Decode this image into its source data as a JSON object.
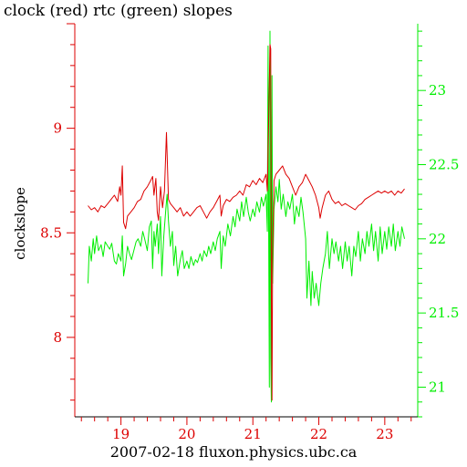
{
  "title": "clock (red) rtc (green) slopes",
  "footer": "2007-02-18 fluxon.physics.ubc.ca",
  "chart_data": {
    "type": "line",
    "title": "clock (red) rtc (green) slopes",
    "xlabel": "2007-02-18 fluxon.physics.ubc.ca",
    "ylabel": "clockslope",
    "y2label": "",
    "xlim": [
      18.3,
      23.5
    ],
    "ylim": [
      7.62,
      9.5
    ],
    "y2lim": [
      20.8,
      23.45
    ],
    "grid": false,
    "x_ticks": [
      19,
      20,
      21,
      22,
      23
    ],
    "x_tick_labels": [
      "19",
      "20",
      "21",
      "22",
      "23"
    ],
    "y_ticks": [
      8,
      8.5,
      9
    ],
    "y_tick_labels": [
      "8",
      "8.5",
      "9"
    ],
    "y2_ticks": [
      21,
      21.5,
      22,
      22.5,
      23
    ],
    "y2_tick_labels": [
      "21",
      "21.5",
      "22",
      "22.5",
      "23"
    ],
    "colors": {
      "clock": "#dd0000",
      "rtc": "#00ee00",
      "axis": "#000000"
    },
    "series": [
      {
        "axis": "left",
        "color": "#dd0000",
        "points": [
          [
            18.5,
            8.63
          ],
          [
            18.55,
            8.61
          ],
          [
            18.6,
            8.62
          ],
          [
            18.65,
            8.6
          ],
          [
            18.7,
            8.63
          ],
          [
            18.75,
            8.62
          ],
          [
            18.8,
            8.64
          ],
          [
            18.85,
            8.66
          ],
          [
            18.9,
            8.68
          ],
          [
            18.95,
            8.65
          ],
          [
            18.98,
            8.72
          ],
          [
            19.0,
            8.68
          ],
          [
            19.02,
            8.82
          ],
          [
            19.04,
            8.55
          ],
          [
            19.07,
            8.52
          ],
          [
            19.1,
            8.58
          ],
          [
            19.15,
            8.6
          ],
          [
            19.2,
            8.62
          ],
          [
            19.25,
            8.65
          ],
          [
            19.3,
            8.66
          ],
          [
            19.35,
            8.7
          ],
          [
            19.4,
            8.72
          ],
          [
            19.45,
            8.75
          ],
          [
            19.48,
            8.77
          ],
          [
            19.5,
            8.68
          ],
          [
            19.53,
            8.76
          ],
          [
            19.55,
            8.6
          ],
          [
            19.57,
            8.56
          ],
          [
            19.6,
            8.72
          ],
          [
            19.63,
            8.62
          ],
          [
            19.66,
            8.7
          ],
          [
            19.69,
            8.98
          ],
          [
            19.72,
            8.66
          ],
          [
            19.75,
            8.64
          ],
          [
            19.8,
            8.62
          ],
          [
            19.85,
            8.6
          ],
          [
            19.9,
            8.62
          ],
          [
            19.95,
            8.58
          ],
          [
            20.0,
            8.6
          ],
          [
            20.05,
            8.58
          ],
          [
            20.1,
            8.6
          ],
          [
            20.15,
            8.62
          ],
          [
            20.2,
            8.63
          ],
          [
            20.25,
            8.6
          ],
          [
            20.3,
            8.57
          ],
          [
            20.35,
            8.6
          ],
          [
            20.4,
            8.62
          ],
          [
            20.45,
            8.65
          ],
          [
            20.5,
            8.68
          ],
          [
            20.52,
            8.58
          ],
          [
            20.55,
            8.63
          ],
          [
            20.6,
            8.66
          ],
          [
            20.65,
            8.65
          ],
          [
            20.7,
            8.67
          ],
          [
            20.75,
            8.68
          ],
          [
            20.8,
            8.7
          ],
          [
            20.85,
            8.68
          ],
          [
            20.9,
            8.73
          ],
          [
            20.95,
            8.72
          ],
          [
            21.0,
            8.75
          ],
          [
            21.05,
            8.73
          ],
          [
            21.1,
            8.76
          ],
          [
            21.15,
            8.74
          ],
          [
            21.2,
            8.78
          ],
          [
            21.22,
            8.7
          ],
          [
            21.24,
            9.05
          ],
          [
            21.26,
            9.4
          ],
          [
            21.27,
            9.38
          ],
          [
            21.28,
            8.2
          ],
          [
            21.29,
            7.7
          ],
          [
            21.3,
            8.4
          ],
          [
            21.32,
            8.75
          ],
          [
            21.35,
            8.78
          ],
          [
            21.4,
            8.8
          ],
          [
            21.45,
            8.82
          ],
          [
            21.5,
            8.78
          ],
          [
            21.55,
            8.76
          ],
          [
            21.6,
            8.72
          ],
          [
            21.65,
            8.68
          ],
          [
            21.7,
            8.72
          ],
          [
            21.75,
            8.74
          ],
          [
            21.8,
            8.78
          ],
          [
            21.85,
            8.75
          ],
          [
            21.9,
            8.72
          ],
          [
            21.95,
            8.68
          ],
          [
            22.0,
            8.62
          ],
          [
            22.02,
            8.57
          ],
          [
            22.05,
            8.62
          ],
          [
            22.1,
            8.68
          ],
          [
            22.15,
            8.7
          ],
          [
            22.2,
            8.66
          ],
          [
            22.25,
            8.64
          ],
          [
            22.3,
            8.65
          ],
          [
            22.35,
            8.63
          ],
          [
            22.4,
            8.64
          ],
          [
            22.45,
            8.63
          ],
          [
            22.5,
            8.62
          ],
          [
            22.55,
            8.61
          ],
          [
            22.6,
            8.63
          ],
          [
            22.65,
            8.64
          ],
          [
            22.7,
            8.66
          ],
          [
            22.75,
            8.67
          ],
          [
            22.8,
            8.68
          ],
          [
            22.85,
            8.69
          ],
          [
            22.9,
            8.7
          ],
          [
            22.95,
            8.69
          ],
          [
            23.0,
            8.7
          ],
          [
            23.05,
            8.69
          ],
          [
            23.1,
            8.7
          ],
          [
            23.15,
            8.68
          ],
          [
            23.2,
            8.7
          ],
          [
            23.25,
            8.69
          ],
          [
            23.3,
            8.71
          ]
        ]
      },
      {
        "axis": "right",
        "color": "#00ee00",
        "points": [
          [
            18.5,
            21.7
          ],
          [
            18.52,
            21.95
          ],
          [
            18.55,
            21.85
          ],
          [
            18.58,
            22.0
          ],
          [
            18.6,
            21.9
          ],
          [
            18.63,
            22.02
          ],
          [
            18.66,
            21.92
          ],
          [
            18.7,
            21.96
          ],
          [
            18.73,
            21.88
          ],
          [
            18.76,
            21.98
          ],
          [
            18.8,
            21.95
          ],
          [
            18.83,
            21.93
          ],
          [
            18.86,
            21.97
          ],
          [
            18.9,
            21.85
          ],
          [
            18.93,
            21.83
          ],
          [
            18.96,
            21.9
          ],
          [
            19.0,
            21.85
          ],
          [
            19.02,
            22.02
          ],
          [
            19.04,
            21.75
          ],
          [
            19.07,
            21.83
          ],
          [
            19.1,
            21.95
          ],
          [
            19.13,
            21.9
          ],
          [
            19.16,
            21.86
          ],
          [
            19.2,
            21.93
          ],
          [
            19.23,
            21.98
          ],
          [
            19.26,
            22.0
          ],
          [
            19.3,
            21.95
          ],
          [
            19.33,
            22.05
          ],
          [
            19.36,
            22.0
          ],
          [
            19.4,
            21.92
          ],
          [
            19.43,
            22.08
          ],
          [
            19.46,
            22.12
          ],
          [
            19.48,
            21.8
          ],
          [
            19.5,
            22.05
          ],
          [
            19.52,
            21.95
          ],
          [
            19.55,
            22.1
          ],
          [
            19.57,
            21.9
          ],
          [
            19.6,
            22.15
          ],
          [
            19.62,
            21.75
          ],
          [
            19.65,
            22.02
          ],
          [
            19.68,
            22.2
          ],
          [
            19.7,
            22.3
          ],
          [
            19.72,
            22.12
          ],
          [
            19.75,
            21.95
          ],
          [
            19.78,
            22.05
          ],
          [
            19.8,
            21.82
          ],
          [
            19.83,
            21.95
          ],
          [
            19.86,
            21.75
          ],
          [
            19.9,
            21.86
          ],
          [
            19.93,
            21.92
          ],
          [
            19.96,
            21.8
          ],
          [
            20.0,
            21.85
          ],
          [
            20.03,
            21.8
          ],
          [
            20.06,
            21.88
          ],
          [
            20.1,
            21.82
          ],
          [
            20.13,
            21.86
          ],
          [
            20.16,
            21.84
          ],
          [
            20.2,
            21.9
          ],
          [
            20.23,
            21.85
          ],
          [
            20.26,
            21.92
          ],
          [
            20.3,
            21.88
          ],
          [
            20.33,
            21.95
          ],
          [
            20.36,
            21.9
          ],
          [
            20.4,
            21.98
          ],
          [
            20.43,
            21.92
          ],
          [
            20.46,
            22.0
          ],
          [
            20.5,
            22.05
          ],
          [
            20.52,
            21.8
          ],
          [
            20.55,
            22.02
          ],
          [
            20.58,
            21.95
          ],
          [
            20.62,
            22.1
          ],
          [
            20.66,
            22.02
          ],
          [
            20.7,
            22.15
          ],
          [
            20.73,
            22.08
          ],
          [
            20.76,
            22.2
          ],
          [
            20.8,
            22.12
          ],
          [
            20.83,
            22.25
          ],
          [
            20.86,
            22.15
          ],
          [
            20.9,
            22.28
          ],
          [
            20.93,
            22.18
          ],
          [
            20.96,
            22.12
          ],
          [
            21.0,
            22.2
          ],
          [
            21.03,
            22.15
          ],
          [
            21.06,
            22.25
          ],
          [
            21.1,
            22.18
          ],
          [
            21.13,
            22.28
          ],
          [
            21.16,
            22.22
          ],
          [
            21.2,
            22.3
          ],
          [
            21.22,
            22.05
          ],
          [
            21.23,
            23.3
          ],
          [
            21.24,
            22.0
          ],
          [
            21.25,
            21.0
          ],
          [
            21.26,
            23.4
          ],
          [
            21.27,
            21.2
          ],
          [
            21.28,
            20.9
          ],
          [
            21.29,
            23.1
          ],
          [
            21.3,
            21.7
          ],
          [
            21.32,
            22.2
          ],
          [
            21.35,
            22.35
          ],
          [
            21.38,
            22.25
          ],
          [
            21.4,
            22.4
          ],
          [
            21.43,
            22.2
          ],
          [
            21.46,
            22.3
          ],
          [
            21.5,
            22.15
          ],
          [
            21.53,
            22.25
          ],
          [
            21.56,
            22.2
          ],
          [
            21.6,
            22.3
          ],
          [
            21.63,
            22.1
          ],
          [
            21.66,
            22.22
          ],
          [
            21.7,
            22.15
          ],
          [
            21.73,
            22.28
          ],
          [
            21.76,
            22.18
          ],
          [
            21.8,
            22.0
          ],
          [
            21.82,
            21.6
          ],
          [
            21.85,
            21.85
          ],
          [
            21.88,
            21.55
          ],
          [
            21.9,
            21.78
          ],
          [
            21.93,
            21.6
          ],
          [
            21.96,
            21.7
          ],
          [
            22.0,
            21.55
          ],
          [
            22.03,
            21.7
          ],
          [
            22.06,
            21.8
          ],
          [
            22.1,
            21.9
          ],
          [
            22.13,
            22.05
          ],
          [
            22.16,
            21.8
          ],
          [
            22.2,
            22.0
          ],
          [
            22.23,
            21.9
          ],
          [
            22.26,
            21.98
          ],
          [
            22.3,
            21.85
          ],
          [
            22.33,
            21.95
          ],
          [
            22.36,
            21.8
          ],
          [
            22.4,
            21.98
          ],
          [
            22.43,
            21.85
          ],
          [
            22.46,
            21.95
          ],
          [
            22.5,
            21.75
          ],
          [
            22.53,
            21.95
          ],
          [
            22.56,
            21.88
          ],
          [
            22.6,
            22.05
          ],
          [
            22.63,
            21.85
          ],
          [
            22.66,
            22.0
          ],
          [
            22.7,
            21.9
          ],
          [
            22.73,
            22.05
          ],
          [
            22.76,
            21.95
          ],
          [
            22.8,
            22.1
          ],
          [
            22.83,
            21.92
          ],
          [
            22.86,
            22.05
          ],
          [
            22.9,
            21.85
          ],
          [
            22.93,
            22.08
          ],
          [
            22.96,
            21.9
          ],
          [
            23.0,
            22.05
          ],
          [
            23.03,
            21.93
          ],
          [
            23.06,
            22.08
          ],
          [
            23.1,
            21.95
          ],
          [
            23.13,
            22.1
          ],
          [
            23.16,
            21.92
          ],
          [
            23.2,
            22.05
          ],
          [
            23.23,
            21.95
          ],
          [
            23.26,
            22.08
          ],
          [
            23.3,
            22.0
          ]
        ]
      }
    ]
  }
}
